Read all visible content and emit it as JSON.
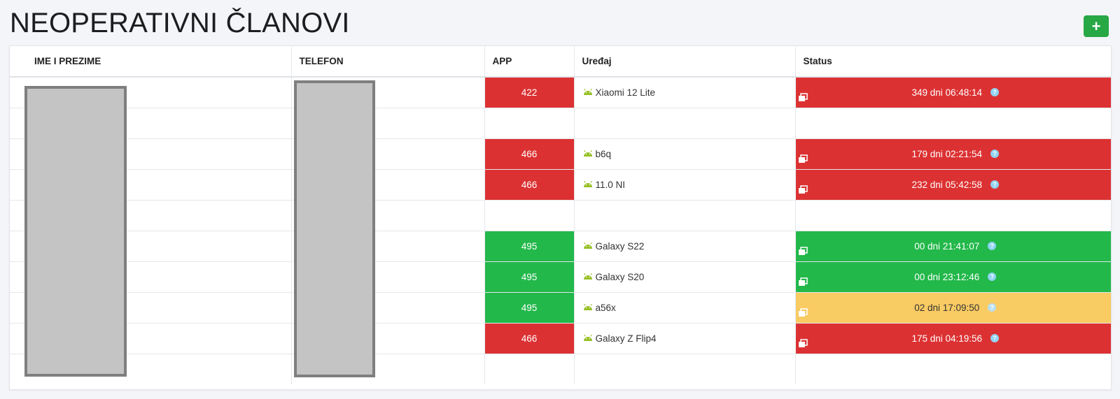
{
  "page": {
    "title": "NEOPERATIVNI ČLANOVI",
    "add_button_label": "+"
  },
  "table": {
    "headers": {
      "name": "IME I PREZIME",
      "phone": "TELEFON",
      "app": "APP",
      "device": "Uređaj",
      "status": "Status"
    },
    "rows": [
      {
        "app": "422",
        "app_color": "red",
        "device": "Xiaomi 12 Lite",
        "status": "349 dni 06:48:14",
        "status_color": "red"
      },
      {
        "app": "",
        "app_color": "",
        "device": "",
        "status": "",
        "status_color": ""
      },
      {
        "app": "466",
        "app_color": "red",
        "device": "b6q",
        "status": "179 dni 02:21:54",
        "status_color": "red"
      },
      {
        "app": "466",
        "app_color": "red",
        "device": "11.0 NI",
        "status": "232 dni 05:42:58",
        "status_color": "red"
      },
      {
        "app": "",
        "app_color": "",
        "device": "",
        "status": "",
        "status_color": ""
      },
      {
        "app": "495",
        "app_color": "green",
        "device": "Galaxy S22",
        "status": "00 dni 21:41:07",
        "status_color": "green"
      },
      {
        "app": "495",
        "app_color": "green",
        "device": "Galaxy S20",
        "status": "00 dni 23:12:46",
        "status_color": "green"
      },
      {
        "app": "495",
        "app_color": "green",
        "device": "a56x",
        "status": "02 dni 17:09:50",
        "status_color": "yellow"
      },
      {
        "app": "466",
        "app_color": "red",
        "device": "Galaxy Z Flip4",
        "status": "175 dni 04:19:56",
        "status_color": "red"
      },
      {
        "app": "",
        "app_color": "",
        "device": "",
        "status": "",
        "status_color": ""
      }
    ],
    "help_glyph": "?"
  },
  "colors": {
    "red": "#dc3132",
    "green": "#22b84a",
    "yellow": "#f9cb63",
    "add_button": "#28a745"
  },
  "icons": {
    "device": "android-icon",
    "status_copy": "copy-icon",
    "status_help": "help-icon"
  }
}
